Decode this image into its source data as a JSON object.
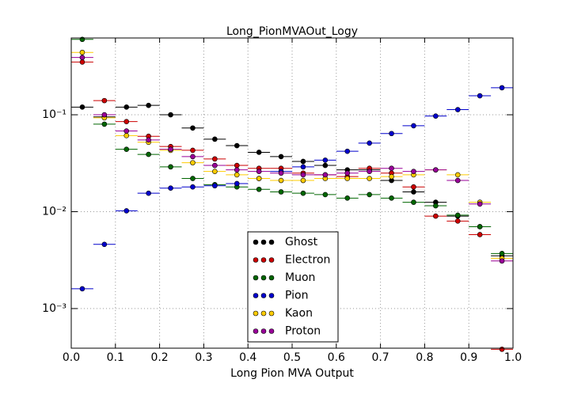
{
  "chart_data": {
    "type": "scatter",
    "title": "Long_PionMVAOut_Logy",
    "x_label": "Long Pion MVA Output",
    "x": [
      0.025,
      0.075,
      0.125,
      0.175,
      0.225,
      0.275,
      0.325,
      0.375,
      0.425,
      0.475,
      0.525,
      0.575,
      0.625,
      0.675,
      0.725,
      0.775,
      0.825,
      0.875,
      0.925,
      0.975
    ],
    "series": [
      {
        "name": "Ghost",
        "color": "#000000",
        "values": [
          0.12,
          0.095,
          0.12,
          0.125,
          0.1,
          0.073,
          0.056,
          0.048,
          0.041,
          0.037,
          0.033,
          0.03,
          0.027,
          0.027,
          0.021,
          0.016,
          0.0125,
          0.009,
          0.007,
          0.0035
        ]
      },
      {
        "name": "Electron",
        "color": "#cc0000",
        "values": [
          0.35,
          0.14,
          0.085,
          0.06,
          0.047,
          0.043,
          0.035,
          0.03,
          0.028,
          0.028,
          0.025,
          0.024,
          0.023,
          0.028,
          0.025,
          0.018,
          0.009,
          0.008,
          0.0058,
          0.00038
        ]
      },
      {
        "name": "Muon",
        "color": "#006600",
        "values": [
          0.6,
          0.08,
          0.044,
          0.039,
          0.029,
          0.022,
          0.019,
          0.018,
          0.017,
          0.016,
          0.0155,
          0.015,
          0.0138,
          0.015,
          0.0138,
          0.0125,
          0.0115,
          0.0092,
          0.007,
          0.0037
        ]
      },
      {
        "name": "Pion",
        "color": "#0000cc",
        "values": [
          0.0016,
          0.0046,
          0.0102,
          0.0155,
          0.0175,
          0.018,
          0.0185,
          0.0195,
          0.022,
          0.026,
          0.029,
          0.034,
          0.042,
          0.051,
          0.064,
          0.077,
          0.097,
          0.113,
          0.157,
          0.19
        ]
      },
      {
        "name": "Kaon",
        "color": "#ffcc00",
        "values": [
          0.44,
          0.093,
          0.061,
          0.052,
          0.043,
          0.032,
          0.026,
          0.024,
          0.022,
          0.021,
          0.021,
          0.022,
          0.022,
          0.022,
          0.023,
          0.024,
          0.027,
          0.024,
          0.0125,
          0.0033
        ]
      },
      {
        "name": "Proton",
        "color": "#990099",
        "values": [
          0.39,
          0.1,
          0.068,
          0.055,
          0.044,
          0.037,
          0.03,
          0.027,
          0.026,
          0.025,
          0.024,
          0.024,
          0.025,
          0.026,
          0.028,
          0.026,
          0.027,
          0.021,
          0.012,
          0.0031
        ]
      }
    ],
    "xlim": [
      0,
      1
    ],
    "xticks": [
      {
        "value": 0,
        "label": "0.0"
      },
      0.1,
      0.2,
      0.3,
      0.4,
      0.5,
      0.6,
      0.7,
      0.8,
      0.9,
      {
        "value": 1,
        "label": "1.0"
      }
    ],
    "ylim": [
      0.00039,
      0.62
    ],
    "log_y": true,
    "yticks": [
      {
        "value": 0.001,
        "label": "10⁻³"
      },
      {
        "value": 0.01,
        "label": "10⁻²"
      },
      {
        "value": 0.1,
        "label": "10⁻¹"
      }
    ],
    "grid": true,
    "legend_loc": "lower center"
  }
}
